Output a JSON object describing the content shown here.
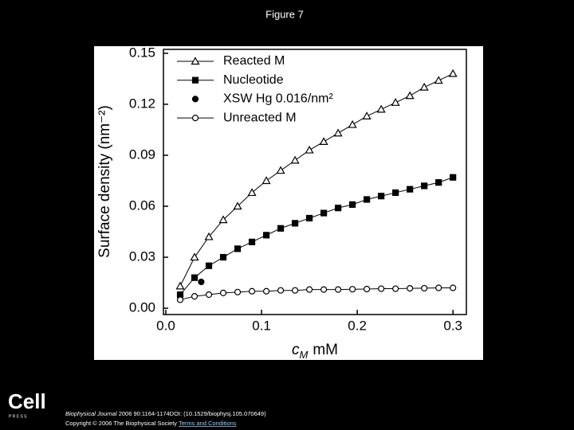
{
  "slide_title": "Figure 7",
  "chart_data": {
    "type": "line",
    "y_label": "Surface density (nm⁻²)",
    "x_label": [
      "c",
      "M",
      "mM"
    ],
    "xlim": [
      -0.0025,
      0.314
    ],
    "ylim": [
      -0.0037,
      0.1523
    ],
    "xticks": [
      {
        "value": 0,
        "label": "0.0"
      },
      0.1,
      0.2,
      0.3
    ],
    "yticks": [
      {
        "value": 0,
        "label": "0.00"
      },
      {
        "value": 0.03,
        "label": "0.03"
      },
      {
        "value": 0.06,
        "label": "0.06"
      },
      {
        "value": 0.09,
        "label": "0.09"
      },
      {
        "value": 0.12,
        "label": "0.12"
      },
      {
        "value": 0.15,
        "label": "0.15"
      }
    ],
    "legend": "top-left",
    "series": [
      {
        "name": "Reacted M",
        "color": "#000000",
        "marker": "triangle-open",
        "x": [
          0.015,
          0.03,
          0.045,
          0.06,
          0.075,
          0.09,
          0.105,
          0.12,
          0.135,
          0.15,
          0.165,
          0.18,
          0.195,
          0.21,
          0.225,
          0.24,
          0.255,
          0.27,
          0.285,
          0.3
        ],
        "values": [
          0.013,
          0.03,
          0.042,
          0.052,
          0.06,
          0.068,
          0.075,
          0.081,
          0.087,
          0.093,
          0.098,
          0.103,
          0.108,
          0.113,
          0.117,
          0.121,
          0.125,
          0.13,
          0.134,
          0.138
        ]
      },
      {
        "name": "Nucleotide",
        "color": "#000000",
        "marker": "square-filled",
        "x": [
          0.015,
          0.03,
          0.045,
          0.06,
          0.075,
          0.09,
          0.105,
          0.12,
          0.135,
          0.15,
          0.165,
          0.18,
          0.195,
          0.21,
          0.225,
          0.24,
          0.255,
          0.27,
          0.285,
          0.3
        ],
        "values": [
          0.008,
          0.018,
          0.025,
          0.03,
          0.035,
          0.039,
          0.043,
          0.047,
          0.05,
          0.053,
          0.056,
          0.059,
          0.061,
          0.064,
          0.066,
          0.068,
          0.07,
          0.072,
          0.074,
          0.077
        ]
      },
      {
        "name": "XSW Hg 0.016/nm²",
        "color": "#000000",
        "marker": "circle-filled",
        "x": [
          0.037
        ],
        "values": [
          0.0155
        ]
      },
      {
        "name": "Unreacted M",
        "color": "#000000",
        "marker": "circle-open",
        "x": [
          0.015,
          0.03,
          0.045,
          0.06,
          0.075,
          0.09,
          0.105,
          0.12,
          0.135,
          0.15,
          0.165,
          0.18,
          0.195,
          0.21,
          0.225,
          0.24,
          0.255,
          0.27,
          0.285,
          0.3
        ],
        "values": [
          0.005,
          0.007,
          0.008,
          0.009,
          0.0095,
          0.01,
          0.01,
          0.0105,
          0.0105,
          0.011,
          0.011,
          0.011,
          0.0112,
          0.0113,
          0.0115,
          0.0115,
          0.0117,
          0.0118,
          0.012,
          0.012
        ]
      }
    ]
  },
  "footer": {
    "logo": "Cell",
    "logo_sub": "P R E S S",
    "citation_journal": "Biophysical Journal",
    "citation_rest": "2006 90:1164-1174DOI: (10.1529/biophysj.105.070649)",
    "copyright": "Copyright © 2006 The Biophysical Society",
    "terms": "Terms and Conditions"
  }
}
